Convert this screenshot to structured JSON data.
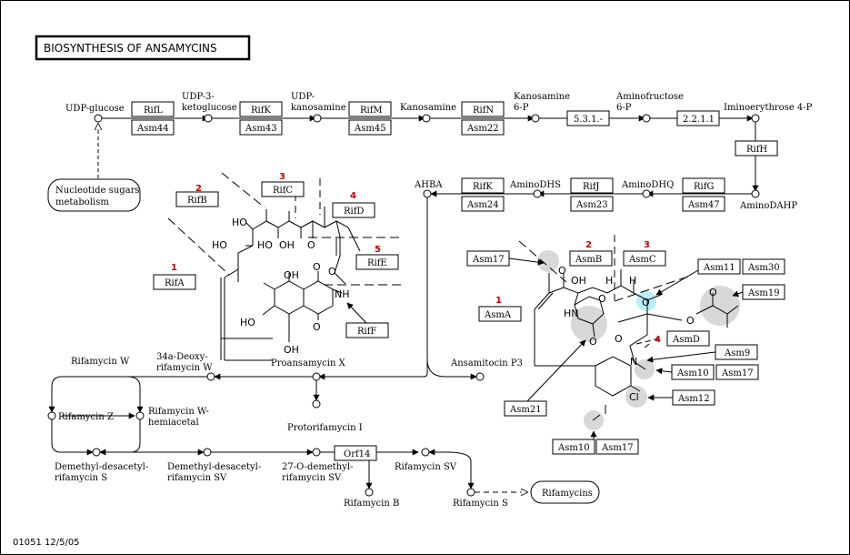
{
  "title": "BIOSYNTHESIS OF ANSAMYCINS",
  "footer": "01051  12/5/05",
  "compounds": {
    "udp_glucose": "UDP-glucose",
    "udp3_a": "UDP-3-",
    "udp3_b": "ketoglucose",
    "udpk_a": "UDP-",
    "udpk_b": "kanosamine",
    "kanosamine": "Kanosamine",
    "kano6p_a": "Kanosamine",
    "kano6p_b": "6-P",
    "aminofructose_a": "Aminofructose",
    "aminofructose_b": "6-P",
    "iminoerythrose": "Iminoerythrose 4-P",
    "aminodahp": "AminoDAHP",
    "aminodhq": "AminoDHQ",
    "aminodhs": "AminoDHS",
    "ahba": "AHBA",
    "nucleotide_a": "Nucleotide sugars",
    "nucleotide_b": "metabolism",
    "rif_w": "Rifamycin W",
    "deoxy_a": "34a-Deoxy-",
    "deoxy_b": "rifamycin W",
    "proansamycin": "Proansamycin X",
    "ansamitocin": "Ansamitocin P3",
    "rif_z": "Rifamycin Z",
    "rif_w_hemi_a": "Rifamycin W-",
    "rif_w_hemi_b": "hemiacetal",
    "protorif": "Protorifamycin I",
    "dm_s_a": "Demethyl-desacetyl-",
    "dm_s_b": "rifamycin S",
    "dm_sv_a": "Demethyl-desacetyl-",
    "dm_sv_b": "rifamycin SV",
    "o_dm_a": "27-O-demethyl-",
    "o_dm_b": "rifamycin SV",
    "rif_sv": "Rifamycin SV",
    "rif_b": "Rifamycin B",
    "rif_s": "Rifamycin S",
    "rifamycins": "Rifamycins"
  },
  "enzymes": {
    "rifL": "RifL",
    "asm44": "Asm44",
    "rifK1": "RifK",
    "asm43": "Asm43",
    "rifM": "RifM",
    "asm45": "Asm45",
    "rifN": "RifN",
    "asm22": "Asm22",
    "ec531": "5.3.1.-",
    "ec2211": "2.2.1.1",
    "rifH": "RifH",
    "rifG": "RifG",
    "asm47": "Asm47",
    "rifJ": "RifJ",
    "asm23": "Asm23",
    "rifK2": "RifK",
    "asm24": "Asm24",
    "rifA": "RifA",
    "rifB": "RifB",
    "rifC": "RifC",
    "rifD": "RifD",
    "rifE": "RifE",
    "rifF": "RifF",
    "orf14": "Orf14",
    "asm17a": "Asm17",
    "asmA": "AsmA",
    "asmB": "AsmB",
    "asmC": "AsmC",
    "asm11": "Asm11",
    "asm30": "Asm30",
    "asm19": "Asm19",
    "asmD": "AsmD",
    "asm9": "Asm9",
    "asm10a": "Asm10",
    "asm17b": "Asm17",
    "asm12": "Asm12",
    "asm21": "Asm21",
    "asm10b": "Asm10",
    "asm17c": "Asm17"
  },
  "module_numbers": {
    "rif1": "1",
    "rif2": "2",
    "rif3": "3",
    "rif4": "4",
    "rif5": "5",
    "asm1": "1",
    "asm2": "2",
    "asm3": "3",
    "asm4": "4"
  },
  "chem_labels": {
    "ho1": "HO",
    "ho2": "HO",
    "ho3": "HO",
    "oh1": "OH",
    "oh2": "OH",
    "oh3": "OH",
    "o1": "O",
    "o2": "O",
    "o3": "O",
    "nh": "NH",
    "ho4": "HO",
    "a_o1": "O",
    "a_oh": "OH",
    "a_h1": "H",
    "a_h2": "H",
    "a_o2": "O",
    "a_o3": "O",
    "a_hn": "HN",
    "a_o4": "O",
    "a_o5": "O",
    "a_n": "N",
    "a_cl": "Cl",
    "a_o6": "O",
    "a_o7": "O"
  },
  "colors": {
    "module_number": "#c00000",
    "highlight_gray": "#d8d8d8",
    "highlight_cyan": "#b8eef8"
  }
}
